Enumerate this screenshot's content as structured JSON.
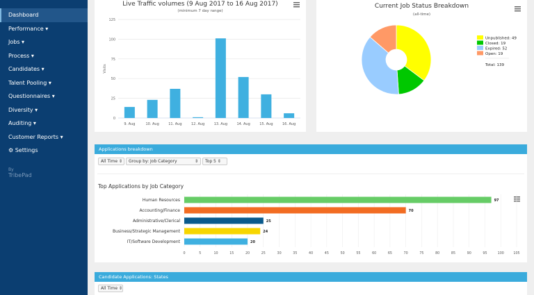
{
  "sidebar": {
    "items": [
      {
        "label": "Dashboard"
      },
      {
        "label": "Performance ▾"
      },
      {
        "label": "Jobs ▾"
      },
      {
        "label": "Process ▾"
      },
      {
        "label": "Candidates ▾"
      },
      {
        "label": "Talent Pooling ▾"
      },
      {
        "label": "Questionnaires ▾"
      },
      {
        "label": "Diversity ▾"
      },
      {
        "label": "Auditing ▾"
      },
      {
        "label": "Customer Reports ▾"
      },
      {
        "label": "⚙ Settings"
      }
    ],
    "by": "By",
    "brand": "TribePad"
  },
  "applications_panel": {
    "title": "Applications breakdown",
    "filters": [
      "All Time ⇕",
      "Group by: Job Category",
      "⇕",
      "Top 5 ⇕"
    ]
  },
  "candidate_panel": {
    "title": "Candidate Applications: States",
    "filters": [
      "All Time ⇕"
    ]
  },
  "chart_data": [
    {
      "type": "bar",
      "title": "Live Traffic volumes (9 Aug 2017 to 16 Aug 2017)",
      "subtitle": "(minimum 7 day range)",
      "ylabel": "Visits",
      "categories": [
        "9. Aug",
        "10. Aug",
        "11. Aug",
        "12. Aug",
        "13. Aug",
        "14. Aug",
        "15. Aug",
        "16. Aug"
      ],
      "values": [
        14,
        23,
        37,
        1,
        101,
        52,
        30,
        6
      ],
      "ylim": [
        0,
        125
      ],
      "yticks": [
        0,
        25,
        50,
        75,
        100,
        125
      ],
      "color": "#3fb0e0",
      "grid": true
    },
    {
      "type": "pie",
      "title": "Current Job Status Breakdown",
      "subtitle": "(all-time)",
      "slices": [
        {
          "label": "Unpublished",
          "value": 49,
          "color": "#ffff00"
        },
        {
          "label": "Closed",
          "value": 19,
          "color": "#00c800"
        },
        {
          "label": "Expired",
          "value": 52,
          "color": "#99ccff"
        },
        {
          "label": "Open",
          "value": 19,
          "color": "#ff9966"
        }
      ],
      "total_label": "Total: 139",
      "legend": "right"
    },
    {
      "type": "bar",
      "orientation": "horizontal",
      "title": "Top Applications by Job Category",
      "categories": [
        "Human Resources",
        "Accounting/Finance",
        "Administrative/Clerical",
        "Business/Strategic Management",
        "IT/Software Development"
      ],
      "values": [
        97,
        70,
        25,
        24,
        20
      ],
      "colors": [
        "#66cc66",
        "#f26c22",
        "#0a5a8c",
        "#f7d600",
        "#3fb0e0"
      ],
      "xlim": [
        0,
        105
      ],
      "xticks": [
        0,
        5,
        10,
        15,
        20,
        25,
        30,
        35,
        40,
        45,
        50,
        55,
        60,
        65,
        70,
        75,
        80,
        85,
        90,
        95,
        100,
        105
      ],
      "grid": true
    }
  ]
}
